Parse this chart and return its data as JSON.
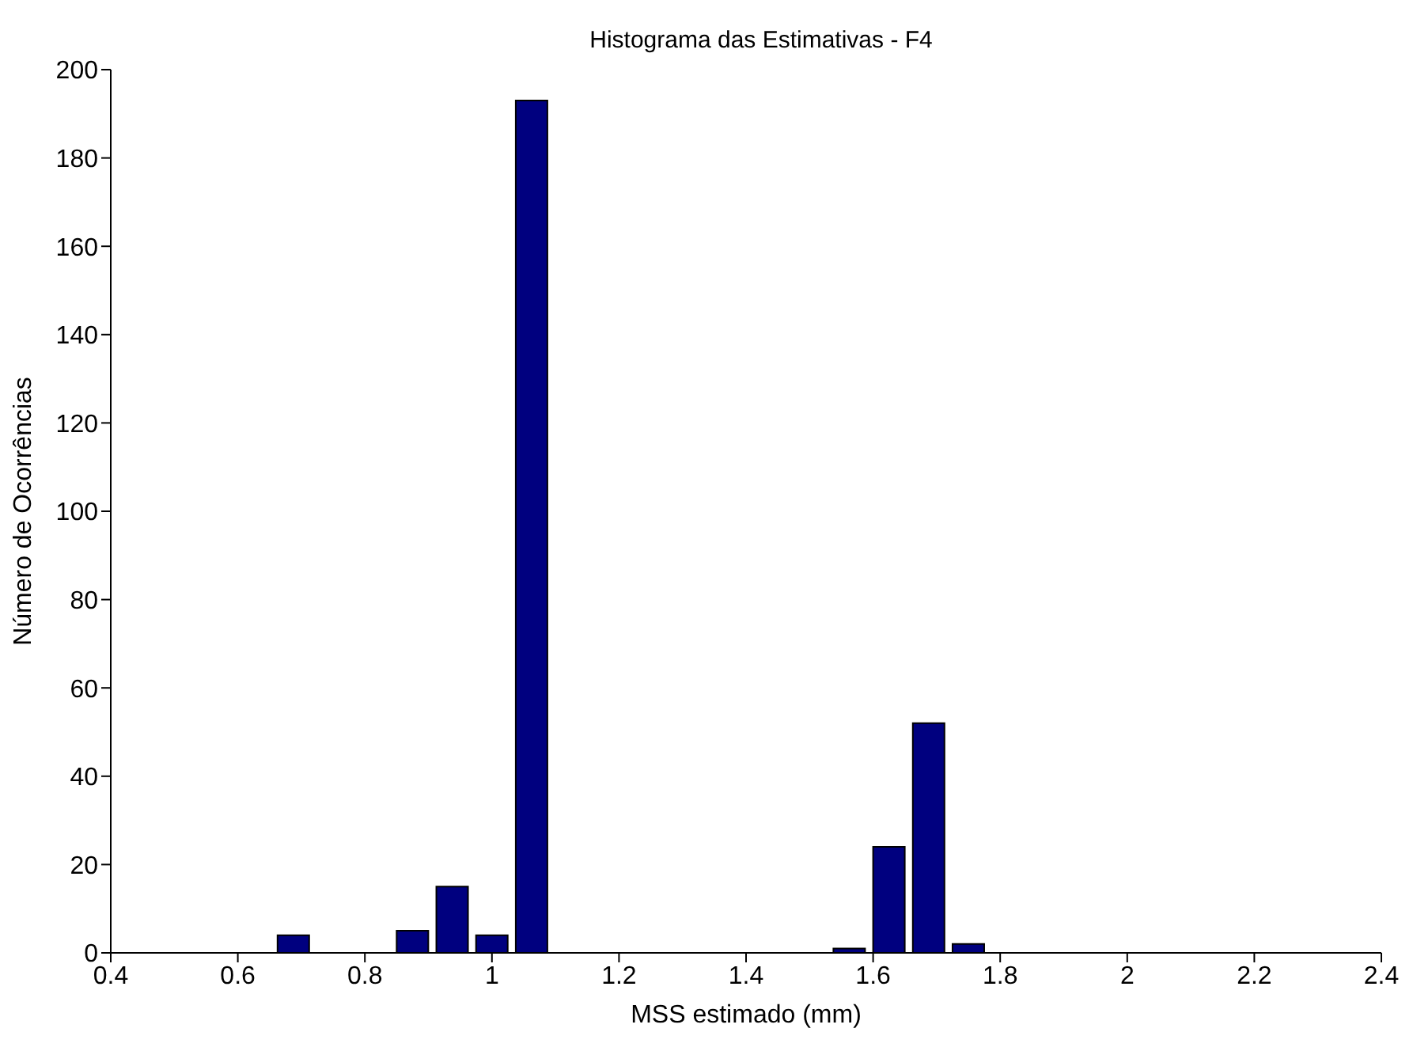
{
  "chart_data": {
    "type": "histogram",
    "title": "Histograma das Estimativas - F4",
    "xlabel": "MSS estimado (mm)",
    "ylabel": "Número de Ocorrências",
    "bins": [
      0.65625,
      0.71875,
      0.78125,
      0.84375,
      0.90625,
      0.96875,
      1.03125,
      1.09375,
      1.15625,
      1.21875,
      1.28125,
      1.34375,
      1.40625,
      1.46875,
      1.53125,
      1.59375,
      1.65625,
      1.71875,
      1.78125
    ],
    "values": [
      4,
      0,
      0,
      5,
      15,
      4,
      193,
      0,
      0,
      0,
      0,
      0,
      0,
      0,
      1,
      24,
      52,
      2
    ],
    "color": "#00007f",
    "xlim": [
      0.4,
      2.4
    ],
    "xticks": [
      0.4,
      0.6,
      0.8,
      1,
      1.2,
      1.4,
      1.6,
      1.8,
      2,
      2.2,
      2.4
    ],
    "ylim": [
      0,
      200
    ],
    "yticks": [
      0,
      20,
      40,
      60,
      80,
      100,
      120,
      140,
      160,
      180,
      200
    ],
    "grid": false
  }
}
